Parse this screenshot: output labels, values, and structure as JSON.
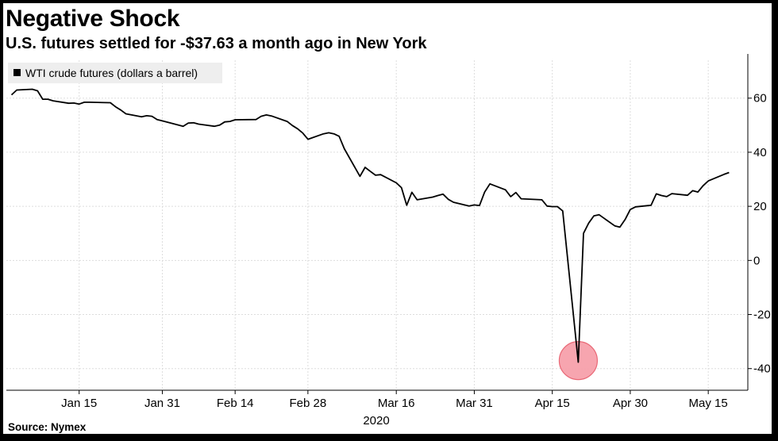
{
  "title": "Negative Shock",
  "subtitle": "U.S. futures settled for -$37.63 a month ago in New York",
  "source": "Source: Nymex",
  "colors": {
    "background": "#ffffff",
    "frame": "#000000",
    "line": "#000000",
    "grid": "#dddddd",
    "legend_bg": "#eeeeee",
    "highlight_fill": "#f7a1ab",
    "highlight_stroke": "#e8606f"
  },
  "chart_data": {
    "type": "line",
    "grid": true,
    "legend_position": "top-left",
    "y_axis_side": "right",
    "ylim": [
      -48,
      74
    ],
    "yticks": [
      -40,
      -20,
      0,
      20,
      40,
      60
    ],
    "xlim": [
      "2020-01-01",
      "2020-05-22"
    ],
    "xticks": [
      {
        "date": "2020-01-15",
        "label": "Jan 15"
      },
      {
        "date": "2020-01-31",
        "label": "Jan 31"
      },
      {
        "date": "2020-02-14",
        "label": "Feb 14"
      },
      {
        "date": "2020-02-28",
        "label": "Feb 28"
      },
      {
        "date": "2020-03-16",
        "label": "Mar 16"
      },
      {
        "date": "2020-03-31",
        "label": "Mar 31"
      },
      {
        "date": "2020-04-15",
        "label": "Apr 15"
      },
      {
        "date": "2020-04-30",
        "label": "Apr 30"
      },
      {
        "date": "2020-05-15",
        "label": "May 15"
      }
    ],
    "year_label": "2020",
    "highlight": {
      "date": "2020-04-20",
      "value": -37.63
    },
    "series": [
      {
        "name": "WTI crude futures (dollars a barrel)",
        "points": [
          [
            "2020-01-02",
            61.2
          ],
          [
            "2020-01-03",
            63.0
          ],
          [
            "2020-01-06",
            63.3
          ],
          [
            "2020-01-07",
            62.7
          ],
          [
            "2020-01-08",
            59.6
          ],
          [
            "2020-01-09",
            59.6
          ],
          [
            "2020-01-10",
            59.0
          ],
          [
            "2020-01-13",
            58.1
          ],
          [
            "2020-01-14",
            58.2
          ],
          [
            "2020-01-15",
            57.8
          ],
          [
            "2020-01-16",
            58.5
          ],
          [
            "2020-01-17",
            58.5
          ],
          [
            "2020-01-21",
            58.3
          ],
          [
            "2020-01-22",
            56.8
          ],
          [
            "2020-01-23",
            55.6
          ],
          [
            "2020-01-24",
            54.2
          ],
          [
            "2020-01-27",
            53.1
          ],
          [
            "2020-01-28",
            53.5
          ],
          [
            "2020-01-29",
            53.3
          ],
          [
            "2020-01-30",
            52.1
          ],
          [
            "2020-01-31",
            51.6
          ],
          [
            "2020-02-03",
            50.1
          ],
          [
            "2020-02-04",
            49.6
          ],
          [
            "2020-02-05",
            50.8
          ],
          [
            "2020-02-06",
            50.9
          ],
          [
            "2020-02-07",
            50.4
          ],
          [
            "2020-02-10",
            49.6
          ],
          [
            "2020-02-11",
            50.0
          ],
          [
            "2020-02-12",
            51.2
          ],
          [
            "2020-02-13",
            51.4
          ],
          [
            "2020-02-14",
            52.0
          ],
          [
            "2020-02-18",
            52.1
          ],
          [
            "2020-02-19",
            53.3
          ],
          [
            "2020-02-20",
            53.8
          ],
          [
            "2020-02-21",
            53.4
          ],
          [
            "2020-02-24",
            51.4
          ],
          [
            "2020-02-25",
            49.9
          ],
          [
            "2020-02-26",
            48.7
          ],
          [
            "2020-02-27",
            47.1
          ],
          [
            "2020-02-28",
            44.8
          ],
          [
            "2020-03-02",
            46.8
          ],
          [
            "2020-03-03",
            47.2
          ],
          [
            "2020-03-04",
            46.8
          ],
          [
            "2020-03-05",
            45.9
          ],
          [
            "2020-03-06",
            41.3
          ],
          [
            "2020-03-09",
            31.1
          ],
          [
            "2020-03-10",
            34.4
          ],
          [
            "2020-03-11",
            32.9
          ],
          [
            "2020-03-12",
            31.5
          ],
          [
            "2020-03-13",
            31.7
          ],
          [
            "2020-03-16",
            28.7
          ],
          [
            "2020-03-17",
            26.9
          ],
          [
            "2020-03-18",
            20.4
          ],
          [
            "2020-03-19",
            25.2
          ],
          [
            "2020-03-20",
            22.4
          ],
          [
            "2020-03-23",
            23.4
          ],
          [
            "2020-03-24",
            24.0
          ],
          [
            "2020-03-25",
            24.5
          ],
          [
            "2020-03-26",
            22.6
          ],
          [
            "2020-03-27",
            21.5
          ],
          [
            "2020-03-30",
            20.1
          ],
          [
            "2020-03-31",
            20.5
          ],
          [
            "2020-04-01",
            20.3
          ],
          [
            "2020-04-02",
            25.3
          ],
          [
            "2020-04-03",
            28.3
          ],
          [
            "2020-04-06",
            26.1
          ],
          [
            "2020-04-07",
            23.6
          ],
          [
            "2020-04-08",
            25.1
          ],
          [
            "2020-04-09",
            22.8
          ],
          [
            "2020-04-13",
            22.4
          ],
          [
            "2020-04-14",
            20.1
          ],
          [
            "2020-04-15",
            19.9
          ],
          [
            "2020-04-16",
            19.9
          ],
          [
            "2020-04-17",
            18.3
          ],
          [
            "2020-04-20",
            -37.63
          ],
          [
            "2020-04-21",
            10.0
          ],
          [
            "2020-04-22",
            13.8
          ],
          [
            "2020-04-23",
            16.5
          ],
          [
            "2020-04-24",
            16.9
          ],
          [
            "2020-04-27",
            12.8
          ],
          [
            "2020-04-28",
            12.3
          ],
          [
            "2020-04-29",
            15.1
          ],
          [
            "2020-04-30",
            18.8
          ],
          [
            "2020-05-01",
            19.8
          ],
          [
            "2020-05-04",
            20.4
          ],
          [
            "2020-05-05",
            24.6
          ],
          [
            "2020-05-06",
            24.0
          ],
          [
            "2020-05-07",
            23.6
          ],
          [
            "2020-05-08",
            24.7
          ],
          [
            "2020-05-11",
            24.1
          ],
          [
            "2020-05-12",
            25.8
          ],
          [
            "2020-05-13",
            25.3
          ],
          [
            "2020-05-14",
            27.6
          ],
          [
            "2020-05-15",
            29.4
          ],
          [
            "2020-05-18",
            31.8
          ],
          [
            "2020-05-19",
            32.5
          ]
        ]
      }
    ]
  }
}
